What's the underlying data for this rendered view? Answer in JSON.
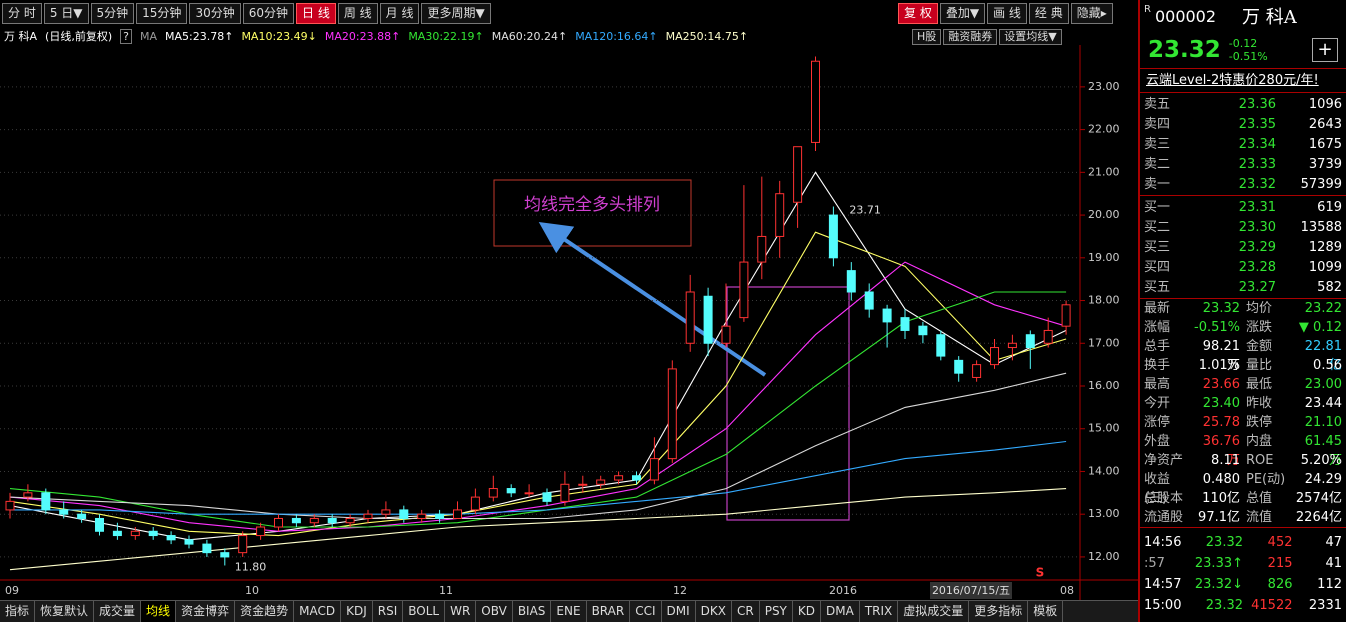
{
  "toolbar": {
    "periods": [
      "分 时",
      "5 日▼",
      "5分钟",
      "15分钟",
      "30分钟",
      "60分钟",
      "日 线",
      "周 线",
      "月 线",
      "更多周期▼"
    ],
    "active": "日 线",
    "right": [
      "复 权",
      "叠加▼",
      "画 线",
      "经 典",
      "隐藏▸"
    ],
    "right_active": "复 权"
  },
  "ma_header": {
    "name": "万 科A",
    "mode": "(日线,前复权)",
    "help": "?",
    "ma": "MA",
    "items": [
      {
        "label": "MA5:",
        "value": 23.78,
        "arrow": "↑",
        "color": "#ffffff"
      },
      {
        "label": "MA10:",
        "value": 23.49,
        "arrow": "↓",
        "color": "#ffff66"
      },
      {
        "label": "MA20:",
        "value": 23.88,
        "arrow": "↑",
        "color": "#ff33ff"
      },
      {
        "label": "MA30:",
        "value": 22.19,
        "arrow": "↑",
        "color": "#33e633"
      },
      {
        "label": "MA60:",
        "value": 20.24,
        "arrow": "↑",
        "color": "#e0e0e0"
      },
      {
        "label": "MA120:",
        "value": 16.64,
        "arrow": "↑",
        "color": "#33aaff"
      },
      {
        "label": "MA250:",
        "value": 14.75,
        "arrow": "↑",
        "color": "#ffffcc"
      }
    ],
    "buttons": [
      "H股",
      "融资融券",
      "设置均线▼"
    ]
  },
  "chart": {
    "type": "candlestick",
    "ylim": [
      11.46,
      23.98
    ],
    "yticks": [
      {
        "value": 12,
        "label": "12.00"
      },
      {
        "value": 13,
        "label": "13.00"
      },
      {
        "value": 14,
        "label": "14.00"
      },
      {
        "value": 15,
        "label": "15.00"
      },
      {
        "value": 16,
        "label": "16.00"
      },
      {
        "value": 17,
        "label": "17.00"
      },
      {
        "value": 18,
        "label": "18.00"
      },
      {
        "value": 19,
        "label": "19.00"
      },
      {
        "value": 20,
        "label": "20.00"
      },
      {
        "value": 21,
        "label": "21.00"
      },
      {
        "value": 22,
        "label": "22.00"
      },
      {
        "value": 23,
        "label": "23.00"
      }
    ],
    "xlabels": [
      "09",
      "10",
      "11",
      "12",
      "2016",
      "08"
    ],
    "cursor_date": "2016/07/15/五",
    "signal": "S",
    "up_color": "#ff3232",
    "down_color": "#54fcfc",
    "candles": [
      [
        13.1,
        13.5,
        12.9,
        13.3
      ],
      [
        13.4,
        13.7,
        13.3,
        13.5
      ],
      [
        13.5,
        13.6,
        13.0,
        13.1
      ],
      [
        13.1,
        13.3,
        12.9,
        13.0
      ],
      [
        13.0,
        13.1,
        12.8,
        12.9
      ],
      [
        12.9,
        13.0,
        12.5,
        12.6
      ],
      [
        12.6,
        12.8,
        12.4,
        12.5
      ],
      [
        12.5,
        12.7,
        12.4,
        12.6
      ],
      [
        12.6,
        12.7,
        12.4,
        12.5
      ],
      [
        12.5,
        12.6,
        12.3,
        12.4
      ],
      [
        12.4,
        12.5,
        12.2,
        12.3
      ],
      [
        12.3,
        12.4,
        12.0,
        12.1
      ],
      [
        12.1,
        12.2,
        11.8,
        12.0
      ],
      [
        12.1,
        12.6,
        12.0,
        12.5
      ],
      [
        12.5,
        12.8,
        12.4,
        12.7
      ],
      [
        12.7,
        13.0,
        12.6,
        12.9
      ],
      [
        12.9,
        13.0,
        12.7,
        12.8
      ],
      [
        12.8,
        13.0,
        12.7,
        12.9
      ],
      [
        12.9,
        13.0,
        12.7,
        12.8
      ],
      [
        12.8,
        13.0,
        12.7,
        12.9
      ],
      [
        12.9,
        13.1,
        12.8,
        13.0
      ],
      [
        13.0,
        13.3,
        12.9,
        13.1
      ],
      [
        13.1,
        13.2,
        12.8,
        12.9
      ],
      [
        12.9,
        13.1,
        12.8,
        13.0
      ],
      [
        13.0,
        13.1,
        12.8,
        12.9
      ],
      [
        12.9,
        13.3,
        12.9,
        13.1
      ],
      [
        13.1,
        13.6,
        13.0,
        13.4
      ],
      [
        13.4,
        13.9,
        13.3,
        13.6
      ],
      [
        13.6,
        13.7,
        13.4,
        13.5
      ],
      [
        13.5,
        13.7,
        13.4,
        13.5
      ],
      [
        13.5,
        13.6,
        13.2,
        13.3
      ],
      [
        13.3,
        14.0,
        13.2,
        13.7
      ],
      [
        13.7,
        13.9,
        13.5,
        13.7
      ],
      [
        13.7,
        13.9,
        13.6,
        13.8
      ],
      [
        13.8,
        14.0,
        13.7,
        13.9
      ],
      [
        13.9,
        14.0,
        13.7,
        13.8
      ],
      [
        13.8,
        14.8,
        13.7,
        14.3
      ],
      [
        14.3,
        16.6,
        14.2,
        16.4
      ],
      [
        17.0,
        18.6,
        16.8,
        18.2
      ],
      [
        18.1,
        18.3,
        16.7,
        17.0
      ],
      [
        17.0,
        18.4,
        16.9,
        17.4
      ],
      [
        17.6,
        20.7,
        17.5,
        18.9
      ],
      [
        18.9,
        20.9,
        18.5,
        19.5
      ],
      [
        19.5,
        20.8,
        19.0,
        20.5
      ],
      [
        20.3,
        21.6,
        19.7,
        21.6
      ],
      [
        21.7,
        23.71,
        21.5,
        23.6
      ],
      [
        20.0,
        20.2,
        18.8,
        19.0
      ],
      [
        18.7,
        18.9,
        18.0,
        18.2
      ],
      [
        18.2,
        18.4,
        17.6,
        17.8
      ],
      [
        17.8,
        17.9,
        16.9,
        17.5
      ],
      [
        17.6,
        17.8,
        17.1,
        17.3
      ],
      [
        17.4,
        17.5,
        17.0,
        17.2
      ],
      [
        17.2,
        17.3,
        16.6,
        16.7
      ],
      [
        16.6,
        16.7,
        16.1,
        16.3
      ],
      [
        16.2,
        16.6,
        16.1,
        16.5
      ],
      [
        16.5,
        17.1,
        16.4,
        16.9
      ],
      [
        16.9,
        17.2,
        16.6,
        17.0
      ],
      [
        17.2,
        17.3,
        16.4,
        16.9
      ],
      [
        17.0,
        17.6,
        16.9,
        17.3
      ],
      [
        17.4,
        18.0,
        17.2,
        17.9
      ]
    ],
    "ma_x": [
      0,
      5,
      10,
      15,
      20,
      25,
      30,
      35,
      40,
      45,
      50,
      55,
      59
    ],
    "ma_series": [
      {
        "name": "MA5",
        "color": "#ffffff",
        "values": [
          13.2,
          12.8,
          12.4,
          12.6,
          12.9,
          13.0,
          13.5,
          13.8,
          17.5,
          21.0,
          17.8,
          16.5,
          17.3
        ]
      },
      {
        "name": "MA10",
        "color": "#ffff66",
        "values": [
          13.3,
          13.0,
          12.6,
          12.5,
          12.8,
          13.0,
          13.4,
          13.7,
          16.0,
          19.6,
          18.8,
          16.6,
          17.1
        ]
      },
      {
        "name": "MA20",
        "color": "#ff33ff",
        "values": [
          13.4,
          13.2,
          12.8,
          12.6,
          12.7,
          12.9,
          13.2,
          13.6,
          15.0,
          17.2,
          18.9,
          17.9,
          17.4
        ]
      },
      {
        "name": "MA30",
        "color": "#33e633",
        "values": [
          13.6,
          13.4,
          13.0,
          12.7,
          12.7,
          12.8,
          13.1,
          13.4,
          14.4,
          16.0,
          17.5,
          18.2,
          18.2
        ]
      },
      {
        "name": "MA60",
        "color": "#d8d8d8",
        "values": [
          13.4,
          13.3,
          13.2,
          13.0,
          12.9,
          12.9,
          12.9,
          13.1,
          13.6,
          14.6,
          15.5,
          15.9,
          16.3
        ]
      },
      {
        "name": "MA120",
        "color": "#33aaff",
        "values": [
          13.1,
          13.1,
          13.0,
          13.0,
          13.0,
          13.0,
          13.1,
          13.3,
          13.5,
          13.9,
          14.3,
          14.5,
          14.7
        ]
      },
      {
        "name": "MA250",
        "color": "#ffffcc",
        "values": [
          11.7,
          11.9,
          12.1,
          12.3,
          12.5,
          12.7,
          12.8,
          12.9,
          13.0,
          13.2,
          13.4,
          13.5,
          13.6
        ]
      }
    ],
    "high_label": "23.71",
    "low_label": "11.80",
    "annotation": "均线完全多头排列"
  },
  "tabs": [
    "指标",
    "恢复默认",
    "成交量",
    "均线",
    "资金博弈",
    "资金趋势",
    "MACD",
    "KDJ",
    "RSI",
    "BOLL",
    "WR",
    "OBV",
    "BIAS",
    "ENE",
    "BRAR",
    "CCI",
    "DMI",
    "DKX",
    "CR",
    "PSY",
    "KD",
    "DMA",
    "TRIX",
    "虚拟成交量",
    "更多指标",
    "模板"
  ],
  "active_tab": "均线",
  "quote": {
    "r": "R",
    "code": "000002",
    "name": "万 科A",
    "price": "23.32",
    "change": "-0.12",
    "pct": "-0.51%",
    "plus": "+",
    "promo": "云端Level-2特惠价280元/年!",
    "sell": [
      [
        "卖五",
        "23.36",
        "1096"
      ],
      [
        "卖四",
        "23.35",
        "2643"
      ],
      [
        "卖三",
        "23.34",
        "1675"
      ],
      [
        "卖二",
        "23.33",
        "3739"
      ],
      [
        "卖一",
        "23.32",
        "57399"
      ]
    ],
    "buy": [
      [
        "买一",
        "23.31",
        "619"
      ],
      [
        "买二",
        "23.30",
        "13588"
      ],
      [
        "买三",
        "23.29",
        "1289"
      ],
      [
        "买四",
        "23.28",
        "1099"
      ],
      [
        "买五",
        "23.27",
        "582"
      ]
    ],
    "stats": [
      [
        "最新",
        {
          "t": "23.32",
          "color": "#33e633"
        },
        "均价",
        {
          "t": "23.22",
          "color": "#33e633"
        }
      ],
      [
        "涨幅",
        {
          "t": "-0.51%",
          "color": "#33e633"
        },
        "涨跌",
        {
          "t": "▼ 0.12",
          "color": "#33e633"
        }
      ],
      [
        "总手",
        {
          "t": "98.21万",
          "color": "#ffffff"
        },
        "金额",
        {
          "t": "22.81亿",
          "color": "#33ccff"
        }
      ],
      [
        "换手",
        {
          "t": "1.01%",
          "color": "#ffffff"
        },
        "量比",
        {
          "t": "0.56",
          "color": "#ffffff"
        }
      ],
      [
        "最高",
        {
          "t": "23.66",
          "color": "#ff3232"
        },
        "最低",
        {
          "t": "23.00",
          "color": "#33e633"
        }
      ],
      [
        "今开",
        {
          "t": "23.40",
          "color": "#33e633"
        },
        "昨收",
        {
          "t": "23.44",
          "color": "#ffffff"
        }
      ],
      [
        "涨停",
        {
          "t": "25.78",
          "color": "#ff3232"
        },
        "跌停",
        {
          "t": "21.10",
          "color": "#33e633"
        }
      ],
      [
        "外盘",
        {
          "t": "36.76万",
          "color": "#ff3232"
        },
        "内盘",
        {
          "t": "61.45万",
          "color": "#33e633"
        }
      ],
      [
        "净资产",
        {
          "t": "8.11",
          "color": "#ffffff"
        },
        "ROE",
        {
          "t": "5.20%",
          "color": "#ffffff"
        }
      ],
      [
        "收益(三)",
        {
          "t": "0.480",
          "color": "#ffffff"
        },
        "PE(动)",
        {
          "t": "24.29",
          "color": "#ffffff"
        }
      ],
      [
        "总股本",
        {
          "t": "110亿",
          "color": "#ffffff"
        },
        "总值",
        {
          "t": "2574亿",
          "color": "#ffffff"
        }
      ],
      [
        "流通股",
        {
          "t": "97.1亿",
          "color": "#ffffff"
        },
        "流值",
        {
          "t": "2264亿",
          "color": "#ffffff"
        }
      ]
    ],
    "ticks": [
      [
        {
          "t": "14:56",
          "color": "#ffffff"
        },
        {
          "t": "23.32",
          "color": "#33e633"
        },
        {
          "t": "452",
          "color": "#ff3232"
        },
        {
          "t": "47",
          "color": "#ffffff"
        }
      ],
      [
        {
          "t": ":57",
          "color": "#aaaaaa"
        },
        {
          "t": "23.33↑",
          "color": "#33e633"
        },
        {
          "t": "215",
          "color": "#ff3232"
        },
        {
          "t": "41",
          "color": "#ffffff"
        }
      ],
      [
        {
          "t": "14:57",
          "color": "#ffffff"
        },
        {
          "t": "23.32↓",
          "color": "#33e633"
        },
        {
          "t": "826",
          "color": "#33e633"
        },
        {
          "t": "112",
          "color": "#ffffff"
        }
      ],
      [
        {
          "t": "15:00",
          "color": "#ffffff"
        },
        {
          "t": "23.32",
          "color": "#33e633"
        },
        {
          "t": "41522",
          "color": "#ff3232"
        },
        {
          "t": "2331",
          "color": "#ffffff"
        }
      ]
    ]
  }
}
